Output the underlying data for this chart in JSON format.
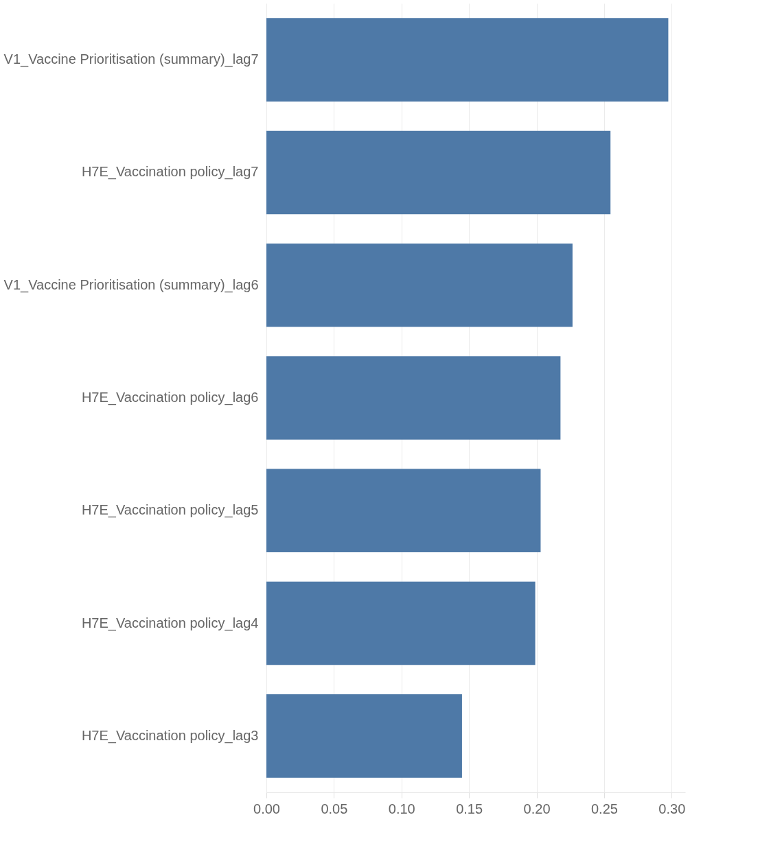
{
  "chart_data": {
    "type": "bar",
    "orientation": "horizontal",
    "categories": [
      "V1_Vaccine Prioritisation (summary)_lag7",
      "H7E_Vaccination policy_lag7",
      "V1_Vaccine Prioritisation (summary)_lag6",
      "H7E_Vaccination policy_lag6",
      "H7E_Vaccination policy_lag5",
      "H7E_Vaccination policy_lag4",
      "H7E_Vaccination policy_lag3"
    ],
    "values": [
      0.2975,
      0.2547,
      0.2266,
      0.2177,
      0.203,
      0.199,
      0.1448
    ],
    "color": "#4e79a7",
    "xlim": [
      0,
      0.31
    ],
    "xticks": [
      {
        "value": 0,
        "label": "0.00"
      },
      0.05,
      {
        "value": 0.1,
        "label": "0.10"
      },
      0.15,
      {
        "value": 0.2,
        "label": "0.20"
      },
      0.25,
      {
        "value": 0.3,
        "label": "0.30"
      }
    ],
    "grid": "x"
  }
}
